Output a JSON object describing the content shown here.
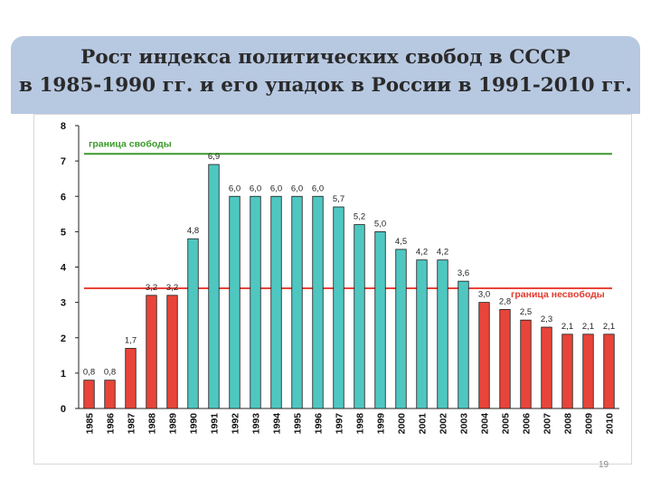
{
  "title": {
    "line1": "Рост индекса политических свобод в СССР",
    "line2": "в 1985-1990 гг. и его упадок в России в 1991-2010 гг."
  },
  "page_number": "19",
  "chart_data": {
    "type": "bar",
    "title": "Рост индекса политических свобод в СССР в 1985-1990 гг. и его упадок в России в 1991-2010 гг.",
    "xlabel": "",
    "ylabel": "",
    "ylim": [
      0,
      8
    ],
    "y_ticks": [
      "0",
      "1",
      "2",
      "3",
      "4",
      "5",
      "6",
      "7",
      "8"
    ],
    "grid": false,
    "categories": [
      "1985",
      "1986",
      "1987",
      "1988",
      "1989",
      "1990",
      "1991",
      "1992",
      "1993",
      "1994",
      "1995",
      "1996",
      "1997",
      "1998",
      "1999",
      "2000",
      "2001",
      "2002",
      "2003",
      "2004",
      "2005",
      "2006",
      "2007",
      "2008",
      "2009",
      "2010"
    ],
    "values": [
      0.8,
      0.8,
      1.7,
      3.2,
      3.2,
      4.8,
      6.9,
      6.0,
      6.0,
      6.0,
      6.0,
      6.0,
      5.7,
      5.2,
      5.0,
      4.5,
      4.2,
      4.2,
      3.6,
      3.0,
      2.8,
      2.5,
      2.3,
      2.1,
      2.1,
      2.1
    ],
    "value_labels": [
      "0,8",
      "0,8",
      "1,7",
      "3,2",
      "3,2",
      "4,8",
      "6,9",
      "6,0",
      "6,0",
      "6,0",
      "6,0",
      "6,0",
      "5,7",
      "5,2",
      "5,0",
      "4,5",
      "4,2",
      "4,2",
      "3,6",
      "3,0",
      "2,8",
      "2,5",
      "2,3",
      "2,1",
      "2,1",
      "2,1"
    ],
    "bar_colors": [
      "red",
      "red",
      "red",
      "red",
      "red",
      "teal",
      "teal",
      "teal",
      "teal",
      "teal",
      "teal",
      "teal",
      "teal",
      "teal",
      "teal",
      "teal",
      "teal",
      "teal",
      "teal",
      "red",
      "red",
      "red",
      "red",
      "red",
      "red",
      "red"
    ],
    "reference_lines": [
      {
        "name": "freedom-line",
        "label": "граница свободы",
        "value": 7.2,
        "color": "green"
      },
      {
        "name": "unfreedom-line",
        "label": "граница несвободы",
        "value": 3.4,
        "color": "red"
      }
    ]
  },
  "colors": {
    "red": "#e8443a",
    "teal": "#4fc7c1",
    "green": "#3a9a2a",
    "axis": "#222222",
    "freedom_text": "#3a9a2a",
    "unfreedom_text": "#e23a2e"
  }
}
